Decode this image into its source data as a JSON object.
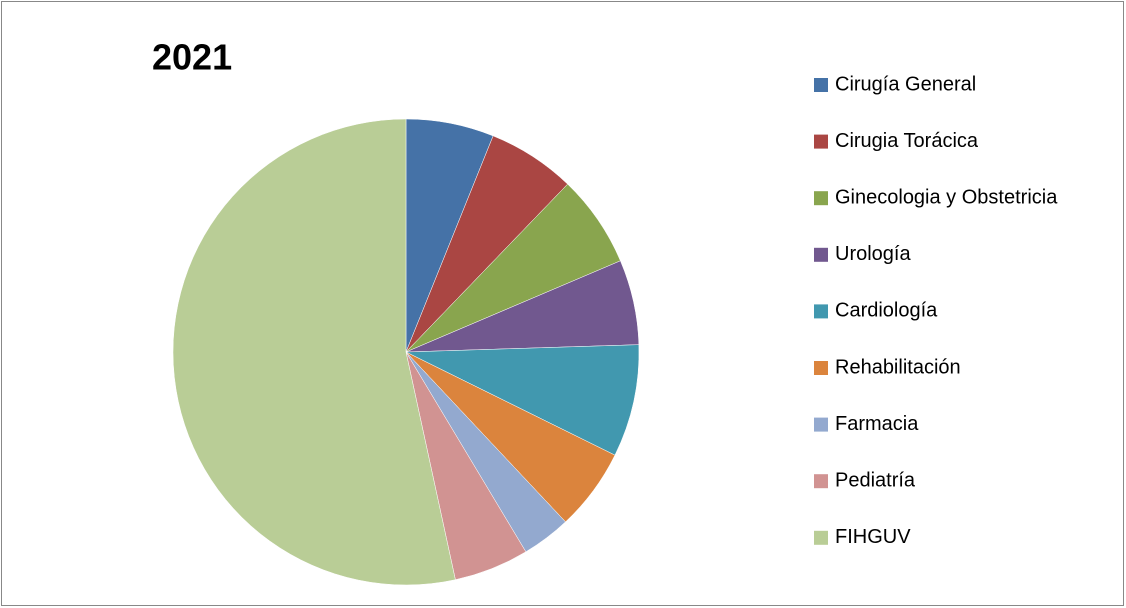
{
  "chart_data": {
    "type": "pie",
    "title": "2021",
    "categories": [
      "Cirugía General",
      "Cirugia Torácica",
      "Ginecologia y Obstetricia",
      "Urología",
      "Cardiología",
      "Rehabilitación",
      "Farmacia",
      "Pediatría",
      "FIHGUV"
    ],
    "values": [
      6.1,
      6.1,
      6.4,
      5.9,
      7.8,
      5.7,
      3.4,
      5.2,
      53.4
    ],
    "colors": [
      "#4572a7",
      "#aa4643",
      "#89a54e",
      "#71588f",
      "#4198af",
      "#db843d",
      "#93a9cf",
      "#d19392",
      "#b9cd96"
    ],
    "legend": "right"
  }
}
